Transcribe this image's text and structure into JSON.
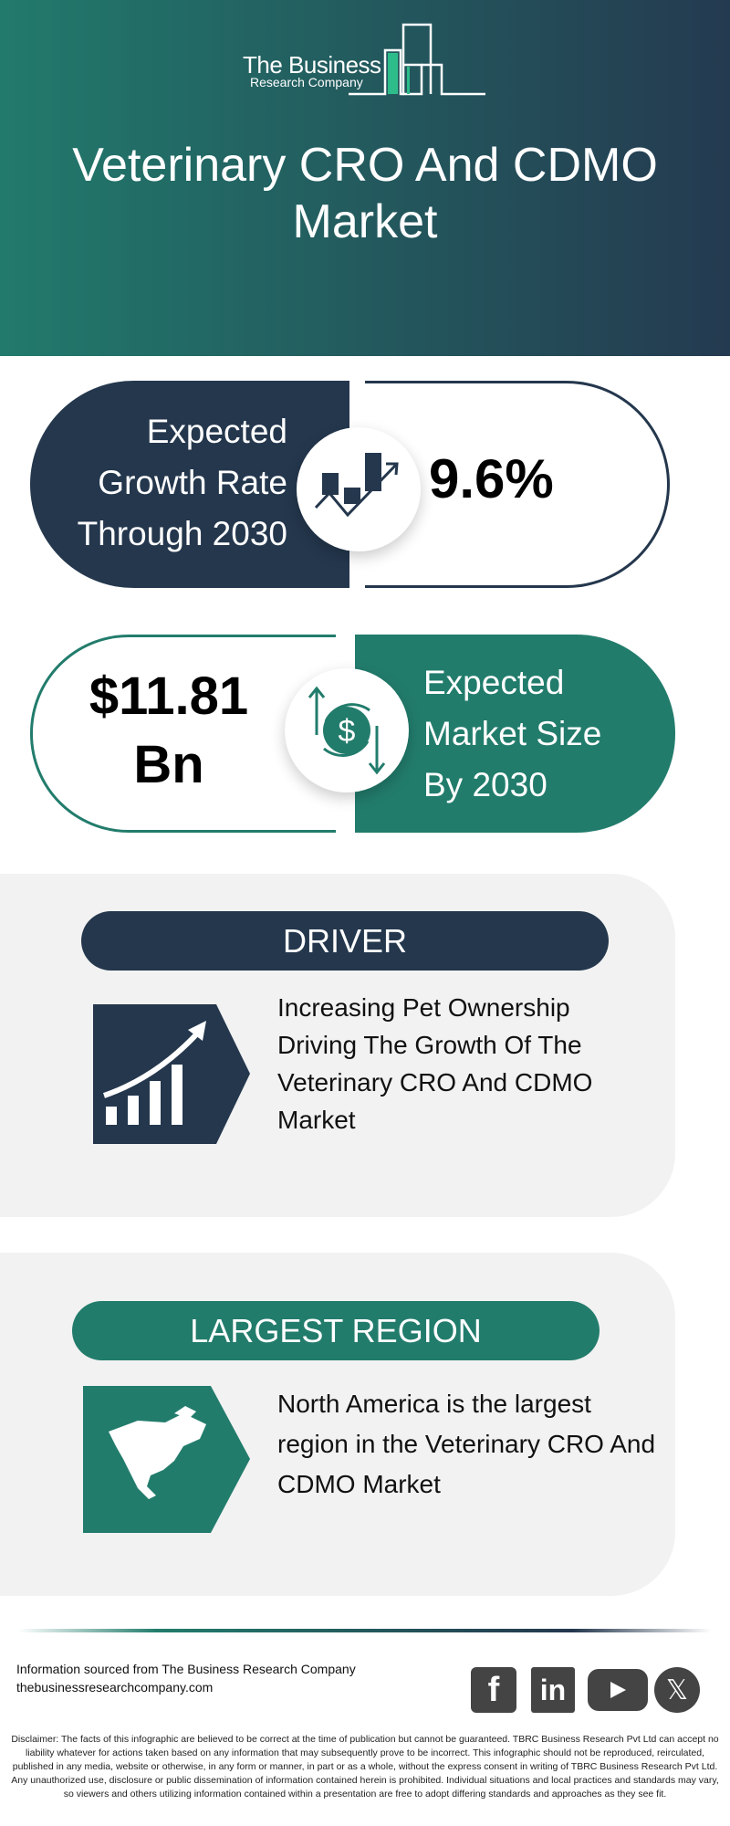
{
  "header": {
    "logo_line1": "The Business",
    "logo_line2": "Research Company",
    "title": "Veterinary CRO And CDMO Market"
  },
  "growth": {
    "label": "Expected Growth Rate Through 2030",
    "value": "9.6%",
    "icon": "growth-chart-icon"
  },
  "market_size": {
    "value": "$11.81 Bn",
    "label": "Expected Market Size By 2030",
    "icon": "dollar-exchange-icon"
  },
  "driver": {
    "heading": "DRIVER",
    "text": "Increasing Pet Ownership Driving The Growth Of The Veterinary CRO And CDMO Market",
    "icon": "rising-bar-chart-icon"
  },
  "region": {
    "heading": "LARGEST REGION",
    "text": "North America is the largest region in the Veterinary CRO And CDMO Market",
    "icon": "north-america-map-icon"
  },
  "footer": {
    "source": "Information sourced from The Business Research Company",
    "website": "thebusinessresearchcompany.com",
    "social": [
      "facebook",
      "linkedin",
      "youtube",
      "x"
    ],
    "disclaimer": "Disclaimer: The facts of this infographic are believed to be correct at the time of publication but cannot be guaranteed. TBRC Business Research Pvt Ltd can accept no liability whatever for actions taken based on any information that may subsequently prove to be incorrect. This infographic should not be reproduced, reirculated, published in any media, website or otherwise, in any form or manner, in part or as a whole, without the express consent in writing of TBRC Business Research Pvt Ltd. Any unauthorized use, disclosure or public dissemination of information contained herein is prohibited. Individual situations and local practices and standards may vary, so viewers and others utilizing information contained within a presentation are free to adopt differing standards and approaches as they see fit."
  },
  "colors": {
    "navy": "#24374d",
    "green": "#227c6c",
    "card": "#f2f2f2"
  }
}
